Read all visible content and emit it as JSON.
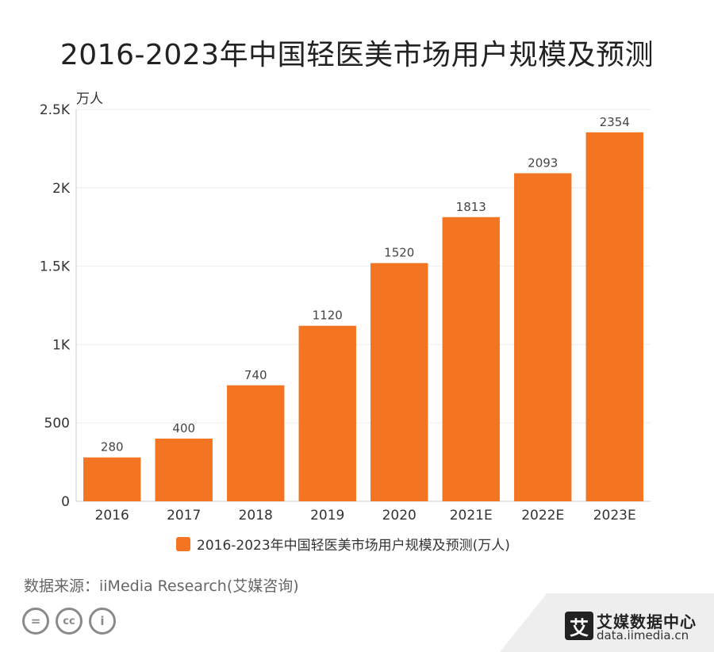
{
  "chart_data": {
    "type": "bar",
    "title": "2016-2023年中国轻医美市场用户规模及预测",
    "unit_label": "万人",
    "categories": [
      "2016",
      "2017",
      "2018",
      "2019",
      "2020",
      "2021E",
      "2022E",
      "2023E"
    ],
    "values": [
      280,
      400,
      740,
      1120,
      1520,
      1813,
      2093,
      2354
    ],
    "value_labels": [
      "280",
      "400",
      "740",
      "1120",
      "1520",
      "1813",
      "2093",
      "2354"
    ],
    "ylim": [
      0,
      2500
    ],
    "yticks": [
      0,
      500,
      1000,
      1500,
      2000,
      2500
    ],
    "ytick_labels": [
      "0",
      "500",
      "1K",
      "1.5K",
      "2K",
      "2.5K"
    ],
    "legend": "2016-2023年中国轻医美市场用户规模及预测(万人)",
    "legend_position": "bottom-center",
    "grid": true,
    "bar_color": "#F47521"
  },
  "footer": {
    "source": "数据来源：iiMedia Research(艾媒咨询)",
    "brand_logo_char": "艾",
    "brand_name": "艾媒数据中心",
    "brand_url": "data.iimedia.cn",
    "cc_symbols": [
      "=",
      "cc",
      "i"
    ]
  },
  "colors": {
    "bar": "#F47521",
    "text": "#333333",
    "grid": "#eeeeee",
    "axis": "#cccccc"
  }
}
